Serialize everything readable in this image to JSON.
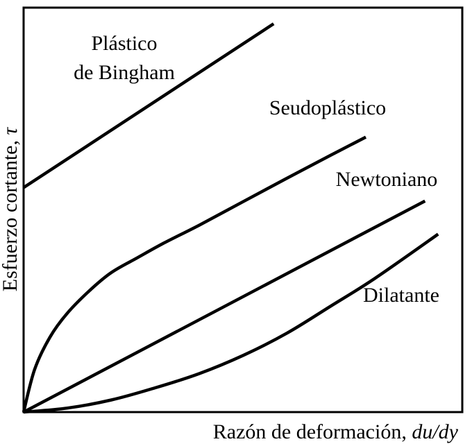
{
  "chart_data": {
    "type": "line",
    "title": "",
    "xlabel_text": "Razón de deformación, ",
    "xlabel_var": "du/dy",
    "ylabel_text": "Esfuerzo cortante, ",
    "ylabel_var": "τ",
    "xlim": [
      0,
      10
    ],
    "ylim": [
      0,
      10
    ],
    "grid": false,
    "legend": "none",
    "series": [
      {
        "name": "Plástico de Bingham",
        "label_lines": [
          "Plástico",
          "de Bingham"
        ],
        "x": [
          0,
          5.7
        ],
        "y": [
          5.55,
          9.6
        ]
      },
      {
        "name": "Seudoplástico",
        "label_lines": [
          "Seudoplástico"
        ],
        "x": [
          0,
          0.25,
          0.6,
          1.0,
          1.5,
          2.0,
          2.6,
          3.2,
          4.0,
          5.0,
          6.0,
          7.0,
          7.8
        ],
        "y": [
          0,
          1.05,
          1.85,
          2.45,
          3.0,
          3.45,
          3.82,
          4.18,
          4.62,
          5.2,
          5.78,
          6.35,
          6.8
        ]
      },
      {
        "name": "Newtoniano",
        "label_lines": [
          "Newtoniano"
        ],
        "x": [
          0,
          9.15
        ],
        "y": [
          0,
          5.22
        ]
      },
      {
        "name": "Dilatante",
        "label_lines": [
          "Dilatante"
        ],
        "x": [
          0,
          1.0,
          2.0,
          3.0,
          4.0,
          5.0,
          6.0,
          7.0,
          8.0,
          9.45
        ],
        "y": [
          0,
          0.1,
          0.3,
          0.6,
          0.95,
          1.4,
          1.95,
          2.62,
          3.3,
          4.4
        ]
      }
    ]
  }
}
